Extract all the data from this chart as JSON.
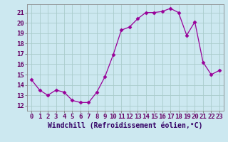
{
  "x": [
    0,
    1,
    2,
    3,
    4,
    5,
    6,
    7,
    8,
    9,
    10,
    11,
    12,
    13,
    14,
    15,
    16,
    17,
    18,
    19,
    20,
    21,
    22,
    23
  ],
  "y": [
    14.5,
    13.5,
    13.0,
    13.5,
    13.3,
    12.5,
    12.3,
    12.3,
    13.3,
    14.8,
    16.9,
    19.3,
    19.6,
    20.4,
    21.0,
    21.0,
    21.1,
    21.4,
    21.0,
    18.8,
    20.1,
    16.2,
    15.0,
    15.4
  ],
  "line_color": "#990099",
  "marker": "D",
  "marker_size": 2.5,
  "bg_color": "#cce8f0",
  "grid_color": "#aacccc",
  "xlabel": "Windchill (Refroidissement éolien,°C)",
  "xlabel_fontsize": 7,
  "tick_fontsize": 6.5,
  "ylim": [
    11.5,
    21.8
  ],
  "xlim": [
    -0.5,
    23.5
  ],
  "yticks": [
    12,
    13,
    14,
    15,
    16,
    17,
    18,
    19,
    20,
    21
  ],
  "xticks": [
    0,
    1,
    2,
    3,
    4,
    5,
    6,
    7,
    8,
    9,
    10,
    11,
    12,
    13,
    14,
    15,
    16,
    17,
    18,
    19,
    20,
    21,
    22,
    23
  ]
}
